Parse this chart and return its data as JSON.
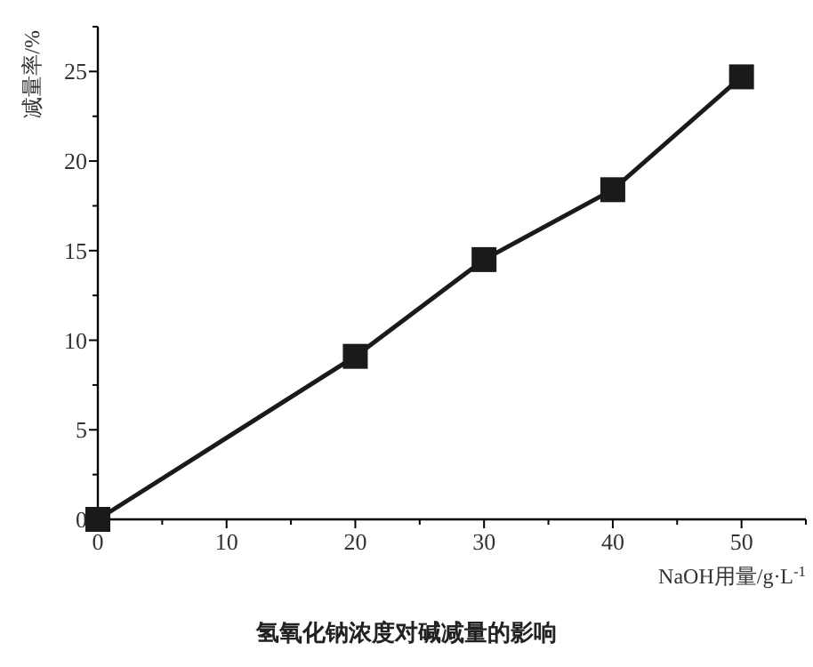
{
  "chart_data": {
    "type": "line",
    "title": "氢氧化钠浓度对碱减量的影响",
    "xlabel": "NaOH用量/g·L$^{-1}$",
    "ylabel": "减量率/%",
    "x": [
      0,
      20,
      30,
      40,
      50
    ],
    "series": [
      {
        "color": "#1a1a1a",
        "values": [
          0,
          9.1,
          14.5,
          18.4,
          24.7
        ]
      }
    ],
    "xlim": [
      0,
      55
    ],
    "ylim": [
      0,
      27.5
    ],
    "xticks": [
      0,
      {
        "value": 5,
        "label": null
      },
      10,
      {
        "value": 15,
        "label": null
      },
      20,
      {
        "value": 25,
        "label": null
      },
      30,
      {
        "value": 35,
        "label": null
      },
      40,
      {
        "value": 45,
        "label": null
      },
      50,
      {
        "value": 55,
        "label": null
      }
    ],
    "yticks": [
      0,
      {
        "value": 2.5,
        "label": null
      },
      5,
      {
        "value": 7.5,
        "label": null
      },
      10,
      {
        "value": 12.5,
        "label": null
      },
      15,
      {
        "value": 17.5,
        "label": null
      },
      20,
      {
        "value": 22.5,
        "label": null
      },
      25,
      {
        "value": 27.5,
        "label": null
      }
    ],
    "marker": "square",
    "line_style": "solid",
    "grid": false
  }
}
